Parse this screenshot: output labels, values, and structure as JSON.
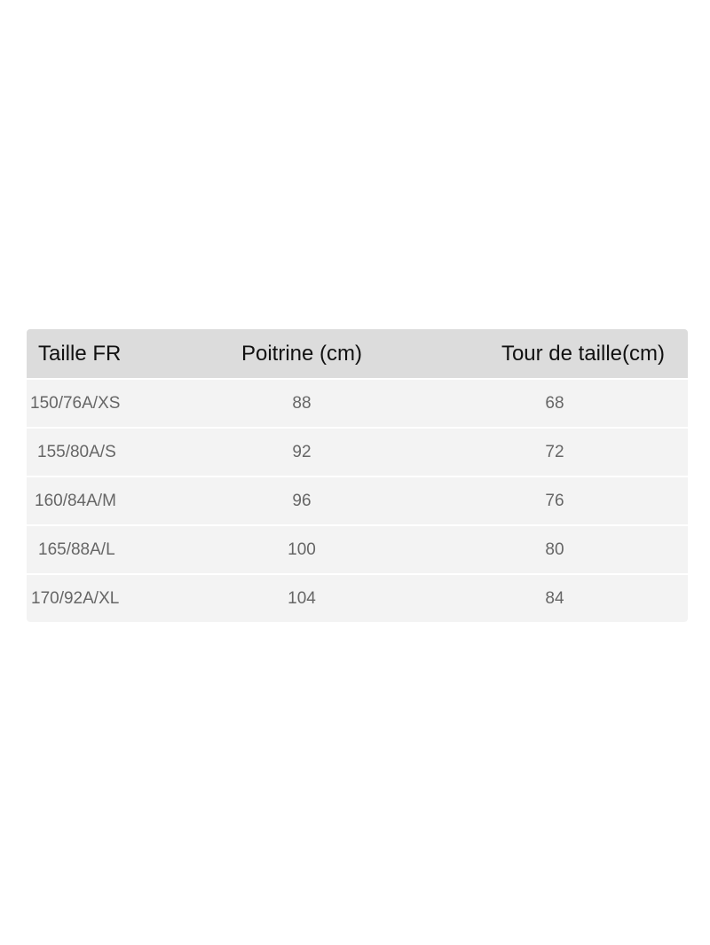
{
  "table": {
    "headers": [
      "Taille FR",
      "Poitrine (cm)",
      "Tour de taille(cm)"
    ],
    "rows": [
      [
        "150/76A/XS",
        "88",
        "68"
      ],
      [
        "155/80A/S",
        "92",
        "72"
      ],
      [
        "160/84A/M",
        "96",
        "76"
      ],
      [
        "165/88A/L",
        "100",
        "80"
      ],
      [
        "170/92A/XL",
        "104",
        "84"
      ]
    ]
  },
  "colors": {
    "header_bg": "#dcdcdc",
    "row_bg": "#f3f3f3",
    "header_text": "#111111",
    "body_text": "#666666"
  }
}
